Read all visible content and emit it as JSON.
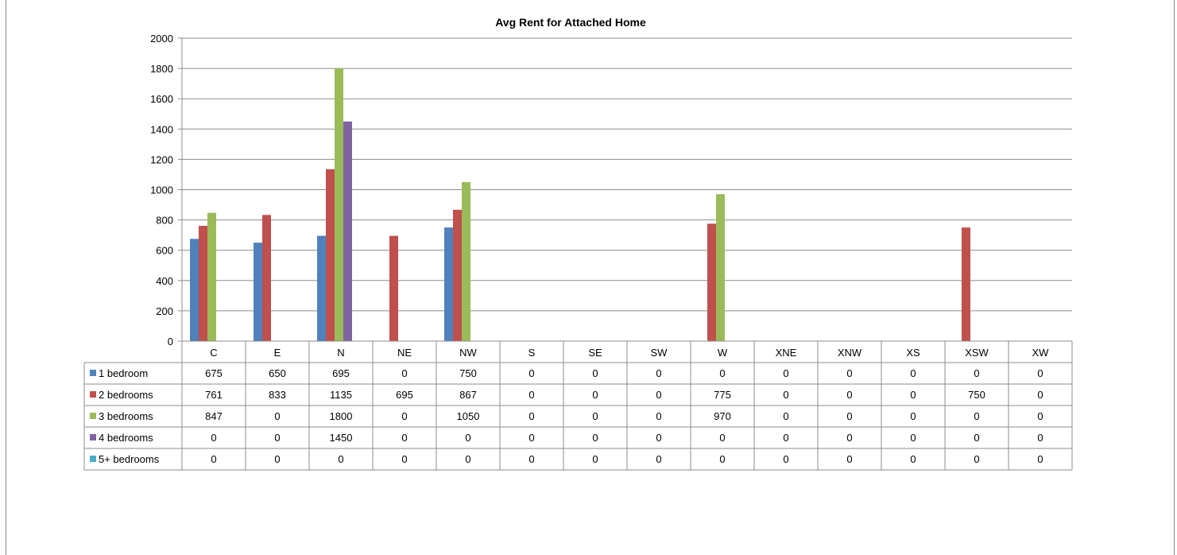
{
  "chart_data": {
    "type": "bar",
    "title": "Avg Rent for Attached Home",
    "xlabel": "",
    "ylabel": "",
    "ylim": [
      0,
      2000
    ],
    "yticks": [
      0,
      200,
      400,
      600,
      800,
      1000,
      1200,
      1400,
      1600,
      1800,
      2000
    ],
    "grid": true,
    "legend": "data-table",
    "categories": [
      "C",
      "E",
      "N",
      "NE",
      "NW",
      "S",
      "SE",
      "SW",
      "W",
      "XNE",
      "XNW",
      "XS",
      "XSW",
      "XW"
    ],
    "series": [
      {
        "name": "1 bedroom",
        "color": "#4f81bd",
        "values": [
          675,
          650,
          695,
          0,
          750,
          0,
          0,
          0,
          0,
          0,
          0,
          0,
          0,
          0
        ]
      },
      {
        "name": "2 bedrooms",
        "color": "#c0504d",
        "values": [
          761,
          833,
          1135,
          695,
          867,
          0,
          0,
          0,
          775,
          0,
          0,
          0,
          750,
          0
        ]
      },
      {
        "name": "3 bedrooms",
        "color": "#9bbb59",
        "values": [
          847,
          0,
          1800,
          0,
          1050,
          0,
          0,
          0,
          970,
          0,
          0,
          0,
          0,
          0
        ]
      },
      {
        "name": "4 bedrooms",
        "color": "#8064a2",
        "values": [
          0,
          0,
          1450,
          0,
          0,
          0,
          0,
          0,
          0,
          0,
          0,
          0,
          0,
          0
        ]
      },
      {
        "name": "5+ bedrooms",
        "color": "#4bacc6",
        "values": [
          0,
          0,
          0,
          0,
          0,
          0,
          0,
          0,
          0,
          0,
          0,
          0,
          0,
          0
        ]
      }
    ]
  }
}
